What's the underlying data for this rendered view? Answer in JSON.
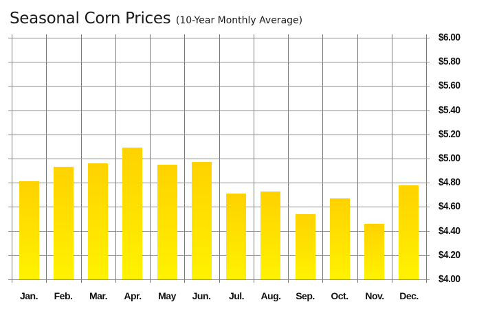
{
  "chart_data": {
    "type": "bar",
    "title": "Seasonal Corn Prices",
    "subtitle": "(10-Year Monthly Average)",
    "xlabel": "",
    "ylabel": "",
    "categories": [
      "Jan.",
      "Feb.",
      "Mar.",
      "Apr.",
      "May",
      "Jun.",
      "Jul.",
      "Aug.",
      "Sep.",
      "Oct.",
      "Nov.",
      "Dec."
    ],
    "values": [
      4.81,
      4.93,
      4.96,
      5.09,
      4.95,
      4.97,
      4.71,
      4.73,
      4.54,
      4.67,
      4.46,
      4.78
    ],
    "ylim": [
      4.0,
      6.0
    ],
    "yticks": [
      4.0,
      4.2,
      4.4,
      4.6,
      4.8,
      5.0,
      5.2,
      5.4,
      5.6,
      5.8,
      6.0
    ],
    "ytick_labels": [
      "$4.00",
      "$4.20",
      "$4.40",
      "$4.60",
      "$4.80",
      "$5.00",
      "$5.20",
      "$5.40",
      "$5.60",
      "$5.80",
      "$6.00"
    ],
    "y_axis_position": "right",
    "grid": true,
    "legend": null,
    "bar_color_top": "#FFD200",
    "bar_color_bottom": "#FFF200"
  },
  "header": {
    "title": "Seasonal Corn Prices",
    "subtitle": "(10-Year Monthly Average)"
  }
}
